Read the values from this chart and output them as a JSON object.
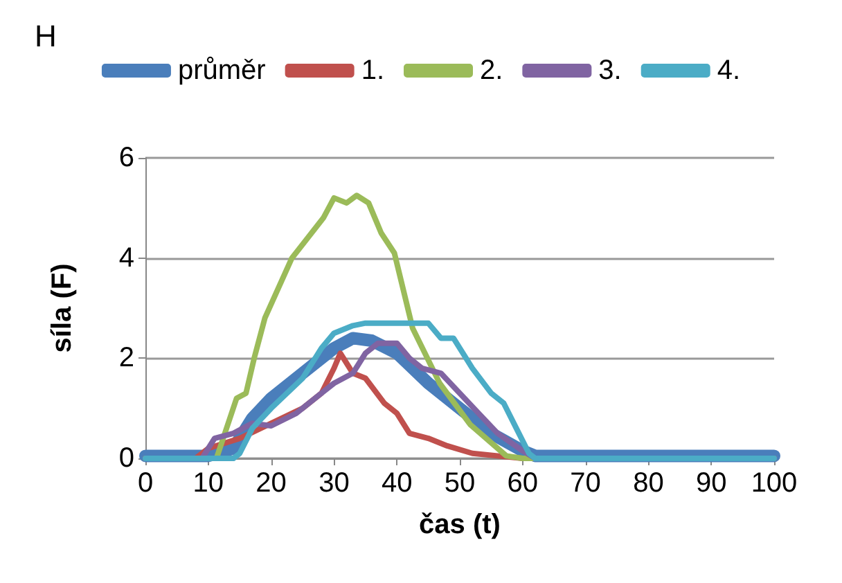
{
  "chart_data": {
    "type": "line",
    "title": "H",
    "xlabel": "čas (t)",
    "ylabel": "síla (F)",
    "xlim": [
      0,
      100
    ],
    "xticks": [
      0,
      10,
      20,
      30,
      40,
      50,
      60,
      70,
      80,
      90,
      100
    ],
    "ylim": [
      0,
      6
    ],
    "yticks": [
      0,
      2,
      4,
      6
    ],
    "grid": "y",
    "legend": "top",
    "marker": "none",
    "line_style": "solid",
    "series": [
      {
        "name": "průměr",
        "color": "#4a7ebb",
        "x": [
          0,
          10,
          14,
          17,
          20,
          25,
          30,
          33,
          36,
          40,
          45,
          50,
          55,
          60,
          62,
          70,
          80,
          90,
          100
        ],
        "values": [
          0.05,
          0.05,
          0.2,
          0.8,
          1.2,
          1.7,
          2.2,
          2.4,
          2.35,
          2.1,
          1.5,
          1.0,
          0.5,
          0.15,
          0.05,
          0.05,
          0.05,
          0.05,
          0.05
        ]
      },
      {
        "name": "1.",
        "color": "#c0504d",
        "x": [
          0,
          8,
          10,
          15,
          20,
          25,
          28,
          30,
          31,
          33,
          35,
          38,
          40,
          42,
          45,
          48,
          52,
          56,
          60,
          100
        ],
        "values": [
          0,
          0,
          0.2,
          0.4,
          0.7,
          1.0,
          1.3,
          1.8,
          2.1,
          1.7,
          1.6,
          1.1,
          0.9,
          0.5,
          0.4,
          0.25,
          0.1,
          0.05,
          0,
          0
        ]
      },
      {
        "name": "2.",
        "color": "#9bbb59",
        "x": [
          0,
          11.3,
          14.5,
          16,
          17.3,
          19,
          23.3,
          25.5,
          28.3,
          30,
          32,
          33.6,
          35.5,
          37.5,
          39.6,
          42.5,
          46.8,
          51.7,
          57.4,
          60,
          100
        ],
        "values": [
          0,
          0,
          1.2,
          1.3,
          2.0,
          2.8,
          4.0,
          4.35,
          4.8,
          5.2,
          5.1,
          5.25,
          5.1,
          4.5,
          4.1,
          2.6,
          1.5,
          0.67,
          0.05,
          0,
          0
        ]
      },
      {
        "name": "3.",
        "color": "#8064a2",
        "x": [
          0,
          9,
          11,
          14,
          17,
          20,
          24,
          28,
          30,
          33,
          35,
          37,
          40,
          42,
          44,
          47,
          50,
          53,
          56,
          60,
          62,
          100
        ],
        "values": [
          0,
          0,
          0.4,
          0.5,
          0.7,
          0.65,
          0.9,
          1.3,
          1.5,
          1.7,
          2.1,
          2.3,
          2.3,
          2.0,
          1.8,
          1.7,
          1.3,
          0.9,
          0.5,
          0.15,
          0,
          0
        ]
      },
      {
        "name": "4.",
        "color": "#4bacc6",
        "x": [
          0,
          14,
          15,
          17,
          20,
          25,
          28,
          30,
          33,
          35,
          40,
          45,
          47,
          49,
          52,
          55,
          57,
          59,
          61,
          62,
          100
        ],
        "values": [
          0,
          0,
          0.1,
          0.6,
          1.0,
          1.6,
          2.2,
          2.5,
          2.65,
          2.7,
          2.7,
          2.7,
          2.4,
          2.4,
          1.8,
          1.3,
          1.1,
          0.6,
          0.1,
          0,
          0
        ]
      }
    ]
  }
}
